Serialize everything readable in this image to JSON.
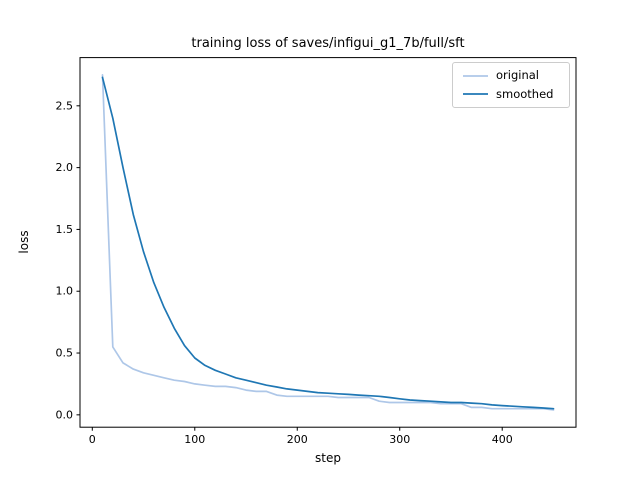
{
  "chart_data": {
    "type": "line",
    "title": "training loss of saves/infigui_g1_7b/full/sft",
    "xlabel": "step",
    "ylabel": "loss",
    "xlim": [
      -12,
      472
    ],
    "ylim": [
      -0.1,
      2.89
    ],
    "x_ticks": [
      0,
      100,
      200,
      300,
      400
    ],
    "y_ticks": [
      0.0,
      0.5,
      1.0,
      1.5,
      2.0,
      2.5
    ],
    "grid": false,
    "legend_position": "upper right",
    "x": [
      10,
      20,
      30,
      40,
      50,
      60,
      70,
      80,
      90,
      100,
      110,
      120,
      130,
      140,
      150,
      160,
      170,
      180,
      190,
      200,
      210,
      220,
      230,
      240,
      250,
      260,
      270,
      280,
      290,
      300,
      310,
      320,
      330,
      340,
      350,
      360,
      370,
      380,
      390,
      400,
      410,
      420,
      430,
      440,
      450
    ],
    "series": [
      {
        "name": "original",
        "color": "#aec7e8",
        "values": [
          2.75,
          0.55,
          0.42,
          0.37,
          0.34,
          0.32,
          0.3,
          0.28,
          0.27,
          0.25,
          0.24,
          0.23,
          0.23,
          0.22,
          0.2,
          0.19,
          0.19,
          0.16,
          0.15,
          0.15,
          0.15,
          0.15,
          0.15,
          0.14,
          0.14,
          0.14,
          0.14,
          0.11,
          0.1,
          0.1,
          0.1,
          0.1,
          0.1,
          0.09,
          0.09,
          0.09,
          0.06,
          0.06,
          0.05,
          0.05,
          0.05,
          0.05,
          0.05,
          0.05,
          0.04
        ]
      },
      {
        "name": "smoothed",
        "color": "#1f77b4",
        "values": [
          2.73,
          2.4,
          2.0,
          1.62,
          1.32,
          1.07,
          0.87,
          0.7,
          0.56,
          0.46,
          0.4,
          0.36,
          0.33,
          0.3,
          0.28,
          0.26,
          0.24,
          0.225,
          0.21,
          0.2,
          0.19,
          0.18,
          0.175,
          0.17,
          0.165,
          0.16,
          0.155,
          0.15,
          0.14,
          0.13,
          0.12,
          0.115,
          0.11,
          0.105,
          0.1,
          0.1,
          0.095,
          0.09,
          0.08,
          0.075,
          0.07,
          0.065,
          0.06,
          0.055,
          0.05
        ]
      }
    ]
  }
}
